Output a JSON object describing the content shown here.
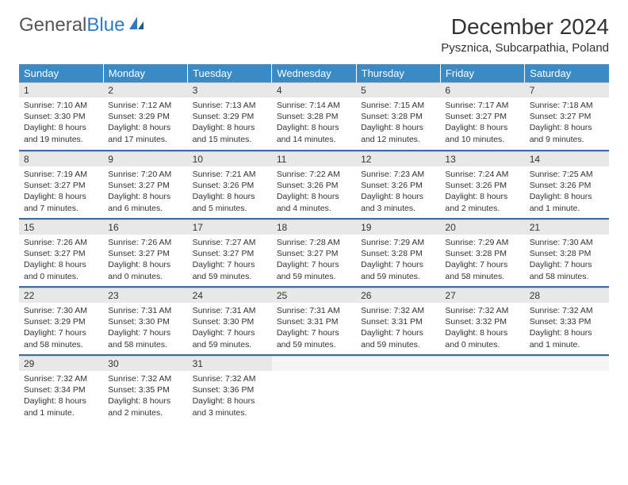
{
  "brand": {
    "part1": "General",
    "part2": "Blue"
  },
  "title": "December 2024",
  "location": "Pysznica, Subcarpathia, Poland",
  "colors": {
    "header_bg": "#3b8ac4",
    "header_text": "#ffffff",
    "row_divider": "#3b6ea0",
    "daynum_bg": "#e8e8e8",
    "brand_blue": "#2e7bc4",
    "text": "#333333"
  },
  "weekdays": [
    "Sunday",
    "Monday",
    "Tuesday",
    "Wednesday",
    "Thursday",
    "Friday",
    "Saturday"
  ],
  "days": [
    {
      "n": "1",
      "sr": "Sunrise: 7:10 AM",
      "ss": "Sunset: 3:30 PM",
      "d1": "Daylight: 8 hours",
      "d2": "and 19 minutes."
    },
    {
      "n": "2",
      "sr": "Sunrise: 7:12 AM",
      "ss": "Sunset: 3:29 PM",
      "d1": "Daylight: 8 hours",
      "d2": "and 17 minutes."
    },
    {
      "n": "3",
      "sr": "Sunrise: 7:13 AM",
      "ss": "Sunset: 3:29 PM",
      "d1": "Daylight: 8 hours",
      "d2": "and 15 minutes."
    },
    {
      "n": "4",
      "sr": "Sunrise: 7:14 AM",
      "ss": "Sunset: 3:28 PM",
      "d1": "Daylight: 8 hours",
      "d2": "and 14 minutes."
    },
    {
      "n": "5",
      "sr": "Sunrise: 7:15 AM",
      "ss": "Sunset: 3:28 PM",
      "d1": "Daylight: 8 hours",
      "d2": "and 12 minutes."
    },
    {
      "n": "6",
      "sr": "Sunrise: 7:17 AM",
      "ss": "Sunset: 3:27 PM",
      "d1": "Daylight: 8 hours",
      "d2": "and 10 minutes."
    },
    {
      "n": "7",
      "sr": "Sunrise: 7:18 AM",
      "ss": "Sunset: 3:27 PM",
      "d1": "Daylight: 8 hours",
      "d2": "and 9 minutes."
    },
    {
      "n": "8",
      "sr": "Sunrise: 7:19 AM",
      "ss": "Sunset: 3:27 PM",
      "d1": "Daylight: 8 hours",
      "d2": "and 7 minutes."
    },
    {
      "n": "9",
      "sr": "Sunrise: 7:20 AM",
      "ss": "Sunset: 3:27 PM",
      "d1": "Daylight: 8 hours",
      "d2": "and 6 minutes."
    },
    {
      "n": "10",
      "sr": "Sunrise: 7:21 AM",
      "ss": "Sunset: 3:26 PM",
      "d1": "Daylight: 8 hours",
      "d2": "and 5 minutes."
    },
    {
      "n": "11",
      "sr": "Sunrise: 7:22 AM",
      "ss": "Sunset: 3:26 PM",
      "d1": "Daylight: 8 hours",
      "d2": "and 4 minutes."
    },
    {
      "n": "12",
      "sr": "Sunrise: 7:23 AM",
      "ss": "Sunset: 3:26 PM",
      "d1": "Daylight: 8 hours",
      "d2": "and 3 minutes."
    },
    {
      "n": "13",
      "sr": "Sunrise: 7:24 AM",
      "ss": "Sunset: 3:26 PM",
      "d1": "Daylight: 8 hours",
      "d2": "and 2 minutes."
    },
    {
      "n": "14",
      "sr": "Sunrise: 7:25 AM",
      "ss": "Sunset: 3:26 PM",
      "d1": "Daylight: 8 hours",
      "d2": "and 1 minute."
    },
    {
      "n": "15",
      "sr": "Sunrise: 7:26 AM",
      "ss": "Sunset: 3:27 PM",
      "d1": "Daylight: 8 hours",
      "d2": "and 0 minutes."
    },
    {
      "n": "16",
      "sr": "Sunrise: 7:26 AM",
      "ss": "Sunset: 3:27 PM",
      "d1": "Daylight: 8 hours",
      "d2": "and 0 minutes."
    },
    {
      "n": "17",
      "sr": "Sunrise: 7:27 AM",
      "ss": "Sunset: 3:27 PM",
      "d1": "Daylight: 7 hours",
      "d2": "and 59 minutes."
    },
    {
      "n": "18",
      "sr": "Sunrise: 7:28 AM",
      "ss": "Sunset: 3:27 PM",
      "d1": "Daylight: 7 hours",
      "d2": "and 59 minutes."
    },
    {
      "n": "19",
      "sr": "Sunrise: 7:29 AM",
      "ss": "Sunset: 3:28 PM",
      "d1": "Daylight: 7 hours",
      "d2": "and 59 minutes."
    },
    {
      "n": "20",
      "sr": "Sunrise: 7:29 AM",
      "ss": "Sunset: 3:28 PM",
      "d1": "Daylight: 7 hours",
      "d2": "and 58 minutes."
    },
    {
      "n": "21",
      "sr": "Sunrise: 7:30 AM",
      "ss": "Sunset: 3:28 PM",
      "d1": "Daylight: 7 hours",
      "d2": "and 58 minutes."
    },
    {
      "n": "22",
      "sr": "Sunrise: 7:30 AM",
      "ss": "Sunset: 3:29 PM",
      "d1": "Daylight: 7 hours",
      "d2": "and 58 minutes."
    },
    {
      "n": "23",
      "sr": "Sunrise: 7:31 AM",
      "ss": "Sunset: 3:30 PM",
      "d1": "Daylight: 7 hours",
      "d2": "and 58 minutes."
    },
    {
      "n": "24",
      "sr": "Sunrise: 7:31 AM",
      "ss": "Sunset: 3:30 PM",
      "d1": "Daylight: 7 hours",
      "d2": "and 59 minutes."
    },
    {
      "n": "25",
      "sr": "Sunrise: 7:31 AM",
      "ss": "Sunset: 3:31 PM",
      "d1": "Daylight: 7 hours",
      "d2": "and 59 minutes."
    },
    {
      "n": "26",
      "sr": "Sunrise: 7:32 AM",
      "ss": "Sunset: 3:31 PM",
      "d1": "Daylight: 7 hours",
      "d2": "and 59 minutes."
    },
    {
      "n": "27",
      "sr": "Sunrise: 7:32 AM",
      "ss": "Sunset: 3:32 PM",
      "d1": "Daylight: 8 hours",
      "d2": "and 0 minutes."
    },
    {
      "n": "28",
      "sr": "Sunrise: 7:32 AM",
      "ss": "Sunset: 3:33 PM",
      "d1": "Daylight: 8 hours",
      "d2": "and 1 minute."
    },
    {
      "n": "29",
      "sr": "Sunrise: 7:32 AM",
      "ss": "Sunset: 3:34 PM",
      "d1": "Daylight: 8 hours",
      "d2": "and 1 minute."
    },
    {
      "n": "30",
      "sr": "Sunrise: 7:32 AM",
      "ss": "Sunset: 3:35 PM",
      "d1": "Daylight: 8 hours",
      "d2": "and 2 minutes."
    },
    {
      "n": "31",
      "sr": "Sunrise: 7:32 AM",
      "ss": "Sunset: 3:36 PM",
      "d1": "Daylight: 8 hours",
      "d2": "and 3 minutes."
    }
  ]
}
